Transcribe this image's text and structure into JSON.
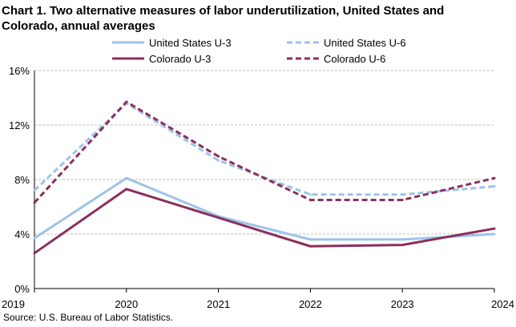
{
  "chart_data": {
    "type": "line",
    "title_line1": "Chart 1. Two alternative measures of labor underutilization, United States and",
    "title_line2": "Colorado, annual averages",
    "categories": [
      "2019",
      "2020",
      "2021",
      "2022",
      "2023",
      "2024"
    ],
    "ylim": [
      0,
      16
    ],
    "yticks": [
      0,
      4,
      8,
      12,
      16
    ],
    "ytick_labels": [
      "0%",
      "4%",
      "8%",
      "12%",
      "16%"
    ],
    "grid": true,
    "legend_position": "top",
    "series": [
      {
        "name": "United States U-3",
        "color": "#9dc3ea",
        "dashed": false,
        "values": [
          3.7,
          8.1,
          5.3,
          3.6,
          3.6,
          4.0
        ]
      },
      {
        "name": "United States U-6",
        "color": "#9dc3ea",
        "dashed": true,
        "values": [
          7.2,
          13.6,
          9.4,
          6.9,
          6.9,
          7.5
        ]
      },
      {
        "name": "Colorado U-3",
        "color": "#8b2f5c",
        "dashed": false,
        "values": [
          2.6,
          7.3,
          5.2,
          3.1,
          3.2,
          4.4
        ]
      },
      {
        "name": "Colorado U-6",
        "color": "#8b2f5c",
        "dashed": true,
        "values": [
          6.3,
          13.7,
          9.7,
          6.5,
          6.5,
          8.1
        ]
      }
    ],
    "source": "Source:  U.S. Bureau  of Labor Statistics."
  }
}
